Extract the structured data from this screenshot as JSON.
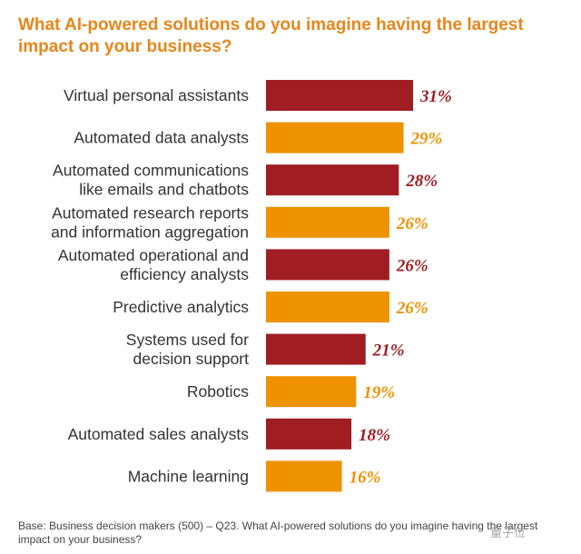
{
  "title_lines": [
    "What AI-powered solutions do you imagine having the largest",
    "impact on your business?"
  ],
  "footnote_lines": [
    "Base: Business decision makers (500) – Q23. What AI-powered solutions do you imagine having the largest",
    "impact on your business?"
  ],
  "watermark": "量子位",
  "colors": {
    "title": "#e8861a",
    "dark_bar": "#a01d22",
    "light_bar": "#ee9200"
  },
  "chart_data": {
    "type": "bar",
    "orientation": "horizontal",
    "categories": [
      [
        "Virtual personal assistants"
      ],
      [
        "Automated data analysts"
      ],
      [
        "Automated communications",
        "like emails and chatbots"
      ],
      [
        "Automated research reports",
        "and information aggregation"
      ],
      [
        "Automated operational and",
        "efficiency analysts"
      ],
      [
        "Predictive analytics"
      ],
      [
        "Systems used for",
        "decision support"
      ],
      [
        "Robotics"
      ],
      [
        "Automated sales analysts"
      ],
      [
        "Machine learning"
      ]
    ],
    "values": [
      31,
      29,
      28,
      26,
      26,
      26,
      21,
      19,
      18,
      16
    ],
    "value_labels": [
      "31%",
      "29%",
      "28%",
      "26%",
      "26%",
      "26%",
      "21%",
      "19%",
      "18%",
      "16%"
    ],
    "bar_colors": [
      "#a01d22",
      "#ee9200",
      "#a01d22",
      "#ee9200",
      "#a01d22",
      "#ee9200",
      "#a01d22",
      "#ee9200",
      "#a01d22",
      "#ee9200"
    ],
    "xlim": [
      0,
      31
    ],
    "axis_visible": false,
    "grid": false
  }
}
